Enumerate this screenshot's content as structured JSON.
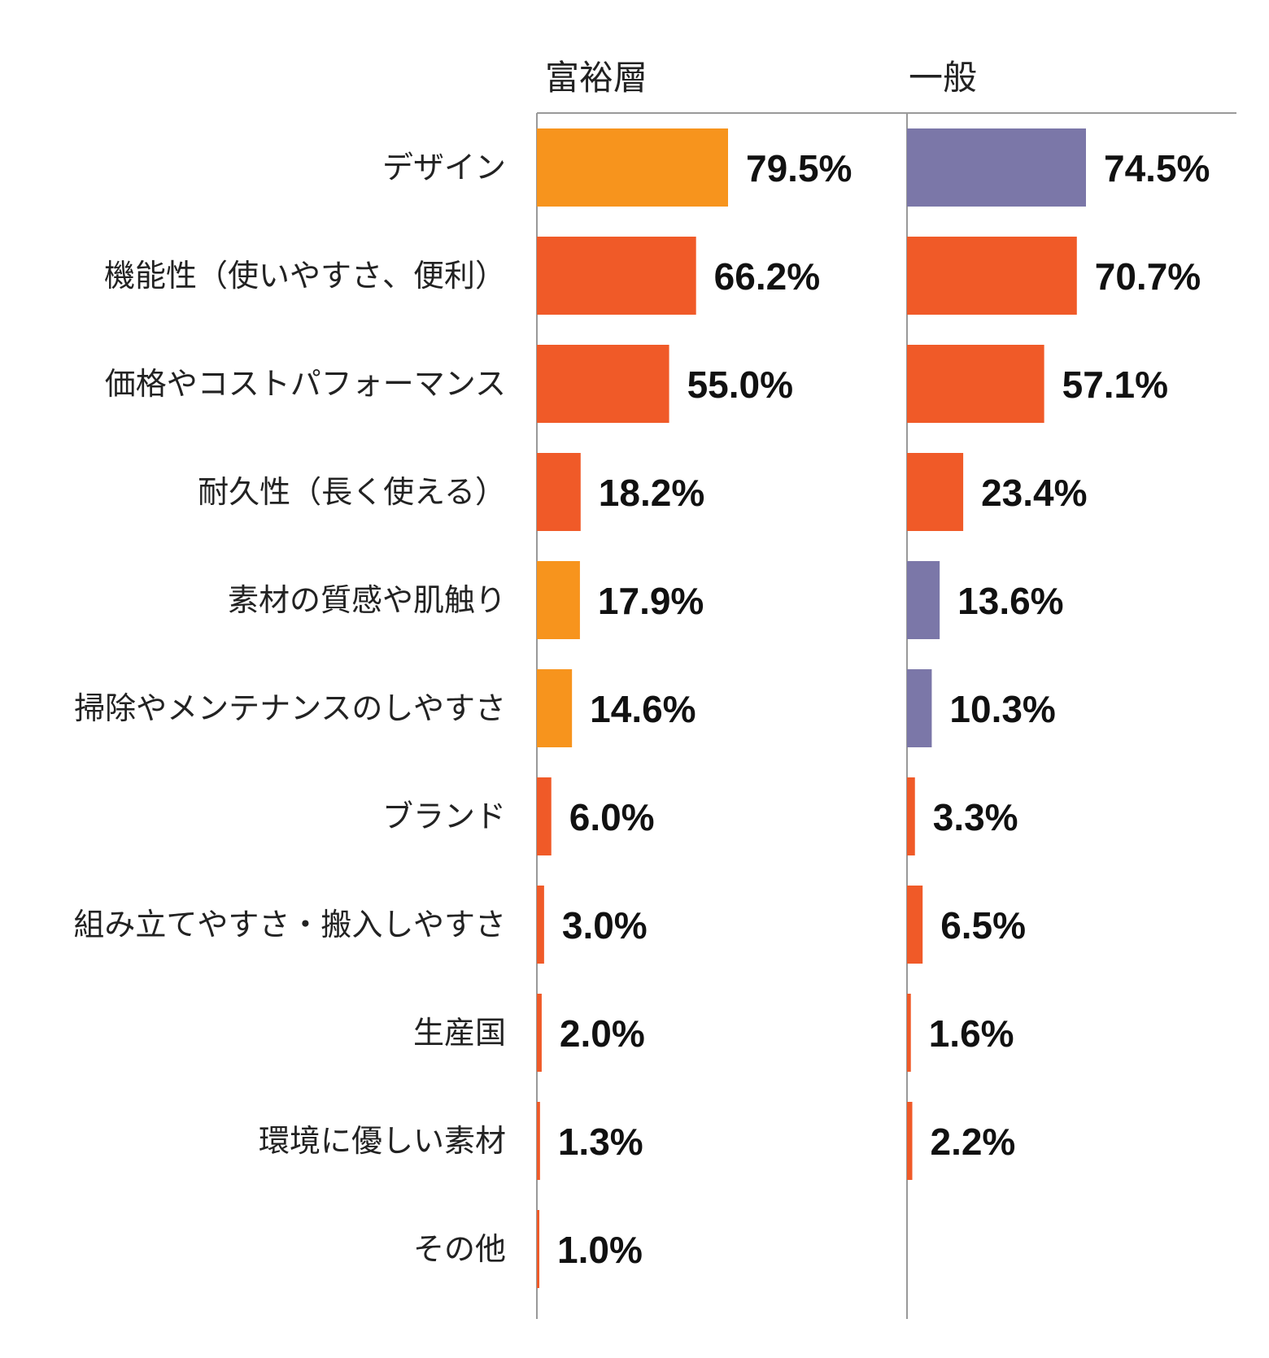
{
  "colors": {
    "orange": "#F7941D",
    "red": "#F05A28",
    "purple": "#7B77A8"
  },
  "chart_data": {
    "type": "bar",
    "orientation": "horizontal",
    "categories": [
      "デザイン",
      "機能性（使いやすさ、便利）",
      "価格やコストパフォーマンス",
      "耐久性（長く使える）",
      "素材の質感や肌触り",
      "掃除やメンテナンスのしやすさ",
      "ブランド",
      "組み立てやすさ・搬入しやすさ",
      "生産国",
      "環境に優しい素材",
      "その他"
    ],
    "series": [
      {
        "name": "富裕層",
        "values": [
          79.5,
          66.2,
          55.0,
          18.2,
          17.9,
          14.6,
          6.0,
          3.0,
          2.0,
          1.3,
          1.0
        ],
        "labels": [
          "79.5%",
          "66.2%",
          "55.0%",
          "18.2%",
          "17.9%",
          "14.6%",
          "6.0%",
          "3.0%",
          "2.0%",
          "1.3%",
          "1.0%"
        ],
        "colors": [
          "orange",
          "red",
          "red",
          "red",
          "orange",
          "orange",
          "red",
          "red",
          "red",
          "red",
          "red"
        ]
      },
      {
        "name": "一般",
        "values": [
          74.5,
          70.7,
          57.1,
          23.4,
          13.6,
          10.3,
          3.3,
          6.5,
          1.6,
          2.2,
          null
        ],
        "labels": [
          "74.5%",
          "70.7%",
          "57.1%",
          "23.4%",
          "13.6%",
          "10.3%",
          "3.3%",
          "6.5%",
          "1.6%",
          "2.2%",
          null
        ],
        "colors": [
          "purple",
          "red",
          "red",
          "red",
          "purple",
          "purple",
          "red",
          "red",
          "red",
          "red",
          null
        ]
      }
    ],
    "xlim": [
      0,
      100
    ],
    "grid": false,
    "legend": "none"
  }
}
